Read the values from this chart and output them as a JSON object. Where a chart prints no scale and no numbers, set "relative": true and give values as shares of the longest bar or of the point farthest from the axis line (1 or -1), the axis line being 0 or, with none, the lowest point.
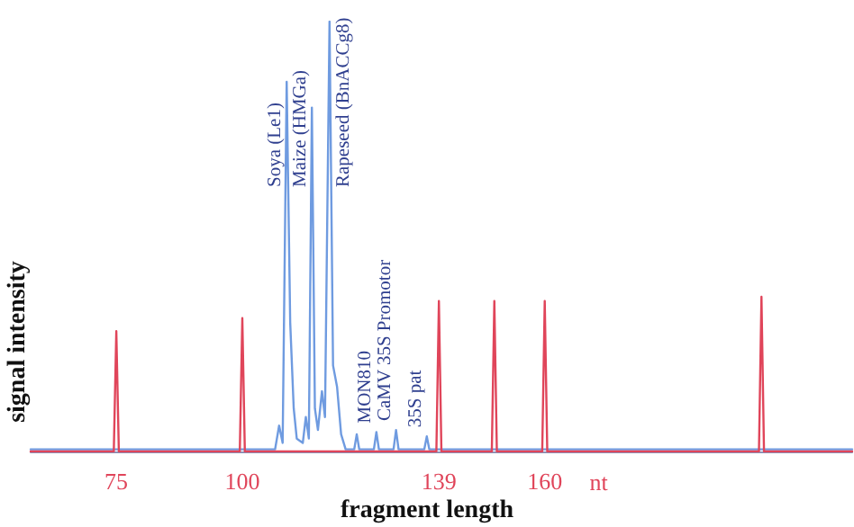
{
  "chart_data": {
    "type": "line",
    "relative": true,
    "xlabel": "fragment length",
    "ylabel": "signal intensity",
    "xlim": [
      58,
      221
    ],
    "xticks": [
      75,
      100,
      139,
      160
    ],
    "grid": false,
    "marker": "none",
    "line_style": "solid",
    "series": [
      {
        "color": "#6f9be0",
        "x": [
          58,
          100,
          106.5,
          107.3,
          108,
          108.8,
          109.5,
          110.2,
          110.8,
          112,
          112.6,
          113.2,
          113.8,
          114.4,
          115,
          115.8,
          116.4,
          117.3,
          118,
          118.8,
          119.6,
          120.5,
          122.2,
          122.7,
          123.2,
          126.1,
          126.6,
          127.1,
          130,
          130.5,
          131,
          136.1,
          136.6,
          137.1,
          221
        ],
        "values": [
          0.005,
          0.005,
          0.005,
          0.06,
          0.02,
          0.86,
          0.3,
          0.1,
          0.03,
          0.02,
          0.08,
          0.03,
          0.8,
          0.1,
          0.05,
          0.14,
          0.08,
          1.0,
          0.2,
          0.15,
          0.04,
          0.005,
          0.005,
          0.04,
          0.005,
          0.005,
          0.045,
          0.005,
          0.005,
          0.05,
          0.005,
          0.005,
          0.035,
          0.005,
          0.005
        ]
      },
      {
        "color": "#e0455a",
        "x": [
          58,
          74.5,
          75,
          75.5,
          99.5,
          100,
          100.5,
          138.5,
          139,
          139.5,
          149.5,
          150,
          150.5,
          159.5,
          160,
          160.5,
          202.5,
          203,
          203.5,
          221
        ],
        "values": [
          0,
          0,
          0.28,
          0,
          0,
          0.31,
          0,
          0,
          0.35,
          0,
          0,
          0.35,
          0,
          0,
          0.35,
          0,
          0,
          0.36,
          0,
          0
        ]
      }
    ],
    "annotations": [
      {
        "text": "Soya (Le1)",
        "x": 108.8,
        "y": 0.86
      },
      {
        "text": "Maize (HMGa)",
        "x": 113.8,
        "y": 0.8
      },
      {
        "text": "Rapeseed (BnACCg8)",
        "x": 117.3,
        "y": 1.0
      },
      {
        "text": "MON810",
        "x": 126.6,
        "y": 0.045
      },
      {
        "text": "CaMV 35S Promotor",
        "x": 130.5,
        "y": 0.05
      },
      {
        "text": "35S pat",
        "x": 136.6,
        "y": 0.035
      },
      "nt"
    ]
  }
}
